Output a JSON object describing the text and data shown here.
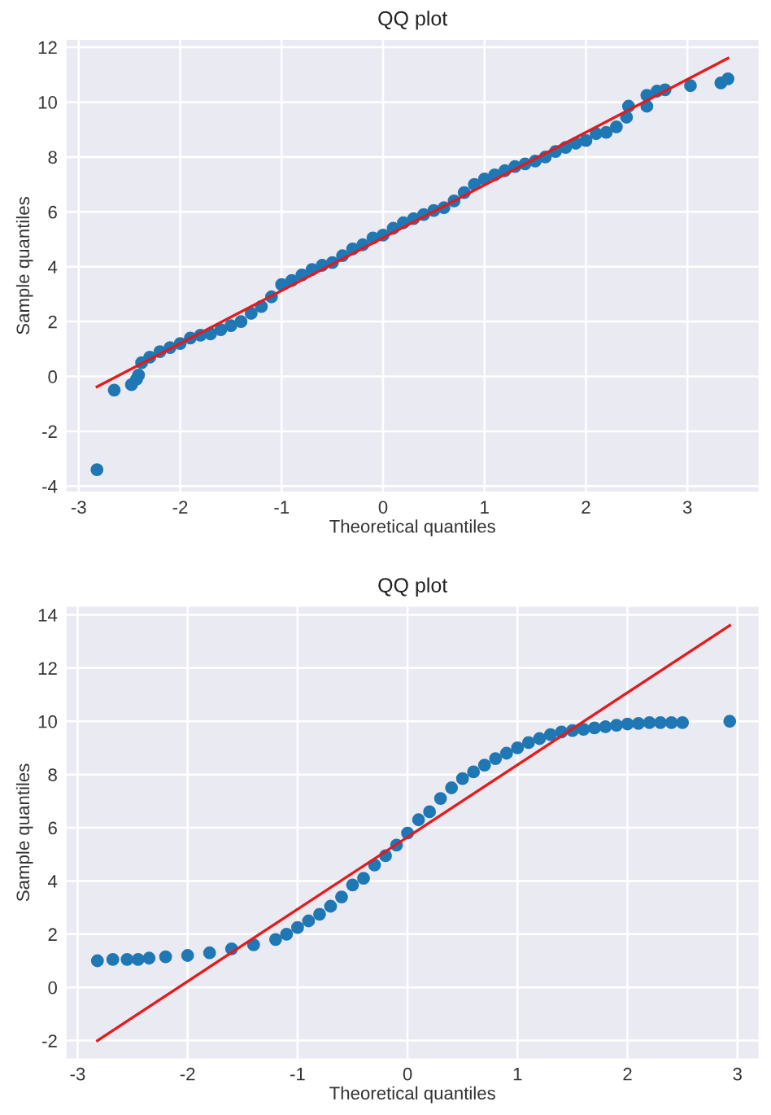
{
  "chart_data": [
    {
      "type": "scatter",
      "title": "QQ plot",
      "xlabel": "Theoretical quantiles",
      "ylabel": "Sample quantiles",
      "xlim": [
        -3.13,
        3.71
      ],
      "ylim": [
        -4.23,
        12.3
      ],
      "xticks": [
        -3,
        -2,
        -1,
        0,
        1,
        2,
        3
      ],
      "yticks": [
        -4,
        -2,
        0,
        2,
        4,
        6,
        8,
        10,
        12
      ],
      "grid": true,
      "series": [
        {
          "marker": "circle",
          "color": "#1f77b4",
          "x": [
            -2.82,
            -2.65,
            -2.48,
            -2.43,
            -2.41,
            -2.38,
            -2.3,
            -2.2,
            -2.1,
            -2.0,
            -1.9,
            -1.8,
            -1.7,
            -1.6,
            -1.5,
            -1.4,
            -1.3,
            -1.2,
            -1.1,
            -1.0,
            -0.9,
            -0.8,
            -0.7,
            -0.6,
            -0.5,
            -0.4,
            -0.3,
            -0.2,
            -0.1,
            0.0,
            0.1,
            0.2,
            0.3,
            0.4,
            0.5,
            0.6,
            0.7,
            0.8,
            0.9,
            1.0,
            1.1,
            1.2,
            1.3,
            1.4,
            1.5,
            1.6,
            1.7,
            1.8,
            1.9,
            2.0,
            2.1,
            2.2,
            2.3,
            2.4,
            2.42,
            2.6,
            2.6,
            2.7,
            2.78,
            3.03,
            3.33,
            3.4
          ],
          "values": [
            -3.4,
            -0.5,
            -0.3,
            -0.1,
            0.05,
            0.5,
            0.7,
            0.9,
            1.05,
            1.2,
            1.4,
            1.5,
            1.55,
            1.7,
            1.85,
            2.0,
            2.3,
            2.55,
            2.9,
            3.35,
            3.5,
            3.7,
            3.9,
            4.05,
            4.15,
            4.4,
            4.65,
            4.8,
            5.05,
            5.15,
            5.4,
            5.6,
            5.75,
            5.9,
            6.05,
            6.15,
            6.4,
            6.7,
            7.0,
            7.2,
            7.35,
            7.5,
            7.65,
            7.75,
            7.85,
            8.0,
            8.2,
            8.35,
            8.5,
            8.6,
            8.85,
            8.9,
            9.1,
            9.45,
            9.85,
            9.85,
            10.25,
            10.4,
            10.45,
            10.6,
            10.7,
            10.85
          ]
        },
        {
          "type": "line",
          "color": "#e41a1c",
          "x": [
            -2.82,
            3.4
          ],
          "values": [
            -0.38,
            11.6
          ]
        }
      ]
    },
    {
      "type": "scatter",
      "title": "QQ plot",
      "xlabel": "Theoretical quantiles",
      "ylabel": "Sample quantiles",
      "xlim": [
        -3.11,
        3.2
      ],
      "ylim": [
        -2.7,
        14.34
      ],
      "xticks": [
        -3,
        -2,
        -1,
        0,
        1,
        2,
        3
      ],
      "yticks": [
        -2,
        0,
        2,
        4,
        6,
        8,
        10,
        12,
        14
      ],
      "grid": true,
      "series": [
        {
          "marker": "circle",
          "color": "#1f77b4",
          "x": [
            -2.82,
            -2.68,
            -2.55,
            -2.45,
            -2.35,
            -2.2,
            -2.0,
            -1.8,
            -1.6,
            -1.4,
            -1.2,
            -1.1,
            -1.0,
            -0.9,
            -0.8,
            -0.7,
            -0.6,
            -0.5,
            -0.4,
            -0.3,
            -0.2,
            -0.1,
            0.0,
            0.1,
            0.2,
            0.3,
            0.4,
            0.5,
            0.6,
            0.7,
            0.8,
            0.9,
            1.0,
            1.1,
            1.2,
            1.3,
            1.4,
            1.5,
            1.6,
            1.7,
            1.8,
            1.9,
            2.0,
            2.1,
            2.2,
            2.3,
            2.4,
            2.5,
            2.93
          ],
          "values": [
            1.0,
            1.05,
            1.05,
            1.05,
            1.1,
            1.15,
            1.2,
            1.3,
            1.45,
            1.6,
            1.8,
            2.0,
            2.25,
            2.5,
            2.75,
            3.05,
            3.4,
            3.85,
            4.1,
            4.6,
            4.95,
            5.35,
            5.8,
            6.3,
            6.6,
            7.1,
            7.5,
            7.85,
            8.1,
            8.35,
            8.6,
            8.8,
            9.0,
            9.2,
            9.35,
            9.5,
            9.6,
            9.65,
            9.7,
            9.75,
            9.8,
            9.85,
            9.9,
            9.92,
            9.95,
            9.95,
            9.95,
            9.95,
            10.0
          ]
        },
        {
          "type": "line",
          "color": "#e41a1c",
          "x": [
            -2.82,
            2.93
          ],
          "values": [
            -2.0,
            13.6
          ]
        }
      ]
    }
  ]
}
